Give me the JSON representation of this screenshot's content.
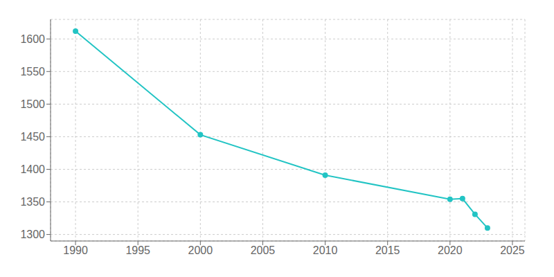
{
  "chart_data": {
    "type": "line",
    "x": [
      1990,
      2000,
      2010,
      2020,
      2021,
      2022,
      2023
    ],
    "values": [
      1612,
      1453,
      1391,
      1354,
      1355,
      1331,
      1310
    ],
    "color": "#22c4c4",
    "marker": "o",
    "xlim": [
      1988,
      2026
    ],
    "xticks": [
      1990,
      1995,
      2000,
      2005,
      2010,
      2015,
      2020,
      2025
    ],
    "ylim": [
      1290,
      1630
    ],
    "yticks": [
      1300,
      1350,
      1400,
      1450,
      1500,
      1550,
      1600
    ],
    "grid": true
  }
}
